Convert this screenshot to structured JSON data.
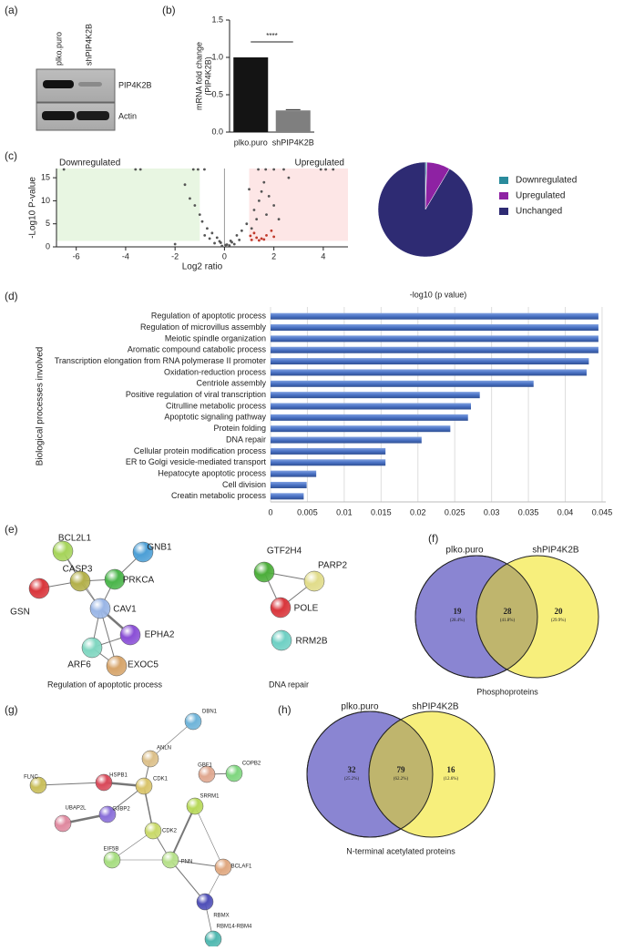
{
  "panel_labels": [
    "(a)",
    "(b)",
    "(c)",
    "(d)",
    "(e)",
    "(f)",
    "(g)",
    "(h)"
  ],
  "blot": {
    "lanes": [
      "plko.puro",
      "shPIP4K2B"
    ],
    "bands": [
      "PIP4K2B",
      "Actin"
    ]
  },
  "chart_data": [
    {
      "type": "bar",
      "ylabel": [
        "mRNA fold change",
        "(PIP4K2B)"
      ],
      "categories": [
        "plko.puro",
        "shPIP4K2B"
      ],
      "values": [
        1.0,
        0.29
      ],
      "errors": [
        null,
        0.01
      ],
      "colors": [
        "#141414",
        "#7f7f7f"
      ],
      "ylim": [
        0,
        1.5
      ],
      "yticks": [
        {
          "value": 0,
          "label": "0.0"
        },
        0.5,
        {
          "value": 1,
          "label": "1.0"
        },
        1.5
      ],
      "significance": "****"
    },
    {
      "type": "scatter",
      "xlabel": "Log2 ratio",
      "ylabel": "-Log10 P-value",
      "annotations": [
        "Downregulated",
        "Upregulated"
      ],
      "xlim": [
        -6.8,
        5
      ],
      "xticks": [
        -6,
        -4,
        -2,
        0,
        2,
        4
      ],
      "ylim": [
        0,
        17
      ],
      "yticks": [
        0,
        5,
        10,
        15
      ],
      "shaded_regions": [
        {
          "xlim": [
            -6.8,
            -1
          ],
          "ylim": [
            1.3,
            17
          ],
          "color": "#e8f6e2"
        },
        {
          "xlim": [
            1,
            5
          ],
          "ylim": [
            1.3,
            17
          ],
          "color": "#fde6e6"
        }
      ],
      "series": [
        {
          "color": "#555555",
          "x": [
            -6.5,
            -3.6,
            -3.4,
            -1.26,
            -1.07,
            -0.81,
            1.37,
            1.67,
            2.0,
            2.4,
            3.9,
            4.1,
            4.4,
            -1.2,
            -1.4,
            -1.6,
            -1.0,
            -0.9,
            -0.7,
            -0.5,
            -0.3,
            -0.2,
            0.1,
            0.3,
            0.5,
            0.7,
            0.9,
            1.2,
            1.4,
            1.5,
            1.6,
            1.8,
            2.0,
            1.3,
            1.1,
            -0.4,
            0.2,
            -0.1,
            0.4,
            0.6,
            -0.6,
            -0.8,
            1.7,
            2.2,
            1.0,
            2.6,
            -2.0,
            -0.15,
            0.05,
            0.25
          ],
          "y": [
            16.8,
            16.8,
            16.8,
            16.8,
            16.8,
            16.8,
            16.8,
            16.8,
            16.8,
            16.8,
            16.8,
            16.8,
            16.8,
            9,
            10.5,
            13.5,
            7,
            5.5,
            4,
            3,
            2,
            1.2,
            0.5,
            1,
            2.5,
            3.5,
            5,
            8,
            10,
            12,
            14,
            11,
            9,
            6,
            4,
            0.8,
            0.3,
            0.2,
            0.6,
            1.5,
            1.8,
            2.5,
            7,
            6,
            12.5,
            15,
            0.6,
            0.9,
            0.4,
            1.3
          ]
        },
        {
          "color": "#c0392b",
          "x": [
            1.1,
            1.3,
            1.5,
            1.2,
            1.7,
            1.4,
            2.0,
            1.9,
            1.05,
            1.6
          ],
          "y": [
            1.5,
            2,
            1.8,
            3,
            2.5,
            1.4,
            2.2,
            3.5,
            2.4,
            1.6
          ]
        }
      ]
    },
    {
      "type": "pie",
      "categories": [
        "Downregulated",
        "Upregulated",
        "Unchanged"
      ],
      "values": [
        0.5,
        8,
        91.5
      ],
      "colors": [
        "#2a8b9c",
        "#8e22a3",
        "#2e2b73"
      ]
    },
    {
      "type": "barh",
      "title": "-log10 (p value)",
      "ylabel": "Biological processes involved",
      "categories": [
        "Regulation of apoptotic process",
        "Regulation of microvillus assembly",
        "Meiotic spindle organization",
        "Aromatic compound catabolic process",
        "Transcription elongation from RNA polymerase II promoter",
        "Oxidation-reduction process",
        "Centriole assembly",
        "Positive regulation of viral transcription",
        "Citrulline metabolic process",
        "Apoptotic signaling pathway",
        "Protein folding",
        "DNA repair",
        "Cellular protein modification process",
        "ER to Golgi vesicle-mediated transport",
        "Hepatocyte apoptotic process",
        "Cell division",
        "Creatin metabolic process"
      ],
      "values": [
        0.0445,
        0.0445,
        0.0445,
        0.0445,
        0.0432,
        0.0429,
        0.0357,
        0.0284,
        0.0272,
        0.0268,
        0.0244,
        0.0205,
        0.0156,
        0.0156,
        0.0062,
        0.0049,
        0.0045
      ],
      "color": "#4a72c4",
      "xlim": [
        0,
        0.0455
      ],
      "xticks": [
        0,
        0.005,
        0.01,
        0.015,
        0.02,
        0.025,
        0.03,
        0.035,
        0.04,
        0.045
      ],
      "grid": true
    }
  ],
  "networks": [
    {
      "nodes": [
        "BCL2L1",
        "CASP3",
        "GNB1",
        "PRKCA",
        "GSN",
        "CAV1",
        "EPHA2",
        "ARF6",
        "EXOC5"
      ],
      "title": "Regulation of apoptotic process"
    },
    {
      "nodes": [
        "GTF2H4",
        "PARP2",
        "POLE",
        "RRM2B"
      ],
      "title": "DNA repair"
    },
    {
      "nodes": [
        "DBN1",
        "ANLN",
        "FLNC",
        "HSPB1",
        "CDK1",
        "GBF1",
        "COPB2",
        "UBAP2L",
        "G3BP2",
        "SRRM1",
        "CDK2",
        "EIF5B",
        "PNN",
        "BCLAF1",
        "RBMX",
        "RBM14-RBM4"
      ]
    }
  ],
  "venns": [
    {
      "sets": [
        "plko.puro",
        "shPIP4K2B"
      ],
      "counts": [
        19,
        28,
        20
      ],
      "percents": [
        "(28.4%)",
        "(41.8%)",
        "(29.9%)"
      ],
      "title": "Phosphoproteins",
      "colors": [
        "#8a85d2",
        "#f7ef7c",
        "#bfb56d"
      ]
    },
    {
      "sets": [
        "plko.puro",
        "shPIP4K2B"
      ],
      "counts": [
        32,
        79,
        16
      ],
      "percents": [
        "(25.2%)",
        "(62.2%)",
        "(12.6%)"
      ],
      "title": "N-terminal acetylated proteins",
      "colors": [
        "#8a85d2",
        "#f7ef7c",
        "#bfb56d"
      ]
    }
  ]
}
